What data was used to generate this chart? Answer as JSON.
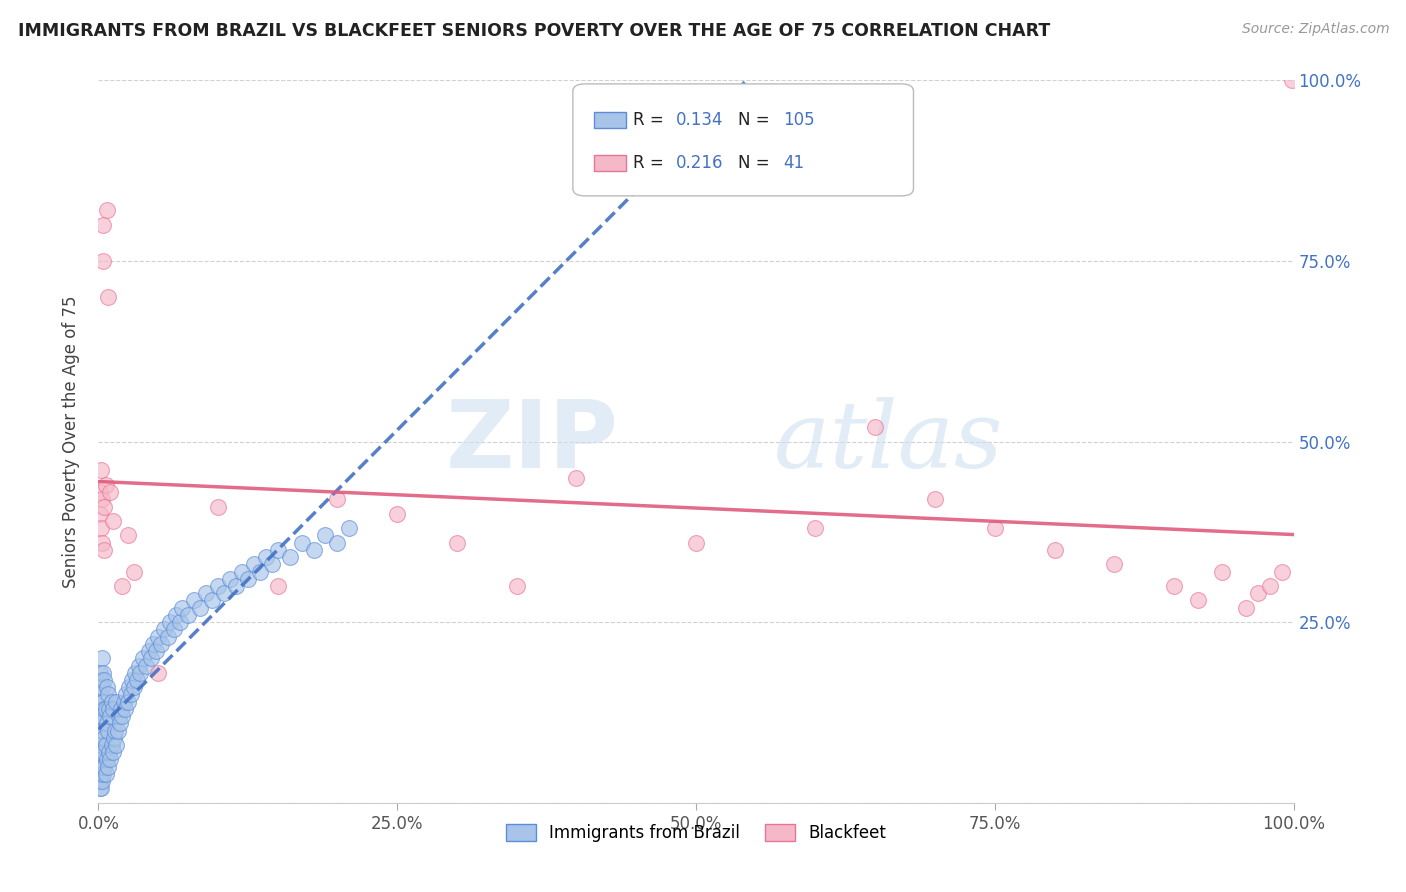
{
  "title": "IMMIGRANTS FROM BRAZIL VS BLACKFEET SENIORS POVERTY OVER THE AGE OF 75 CORRELATION CHART",
  "source": "Source: ZipAtlas.com",
  "ylabel": "Seniors Poverty Over the Age of 75",
  "xlim": [
    0.0,
    1.0
  ],
  "ylim": [
    0.0,
    1.0
  ],
  "xtick_labels": [
    "0.0%",
    "25.0%",
    "50.0%",
    "75.0%",
    "100.0%"
  ],
  "xtick_vals": [
    0.0,
    0.25,
    0.5,
    0.75,
    1.0
  ],
  "ytick_labels": [
    "",
    "25.0%",
    "50.0%",
    "75.0%",
    "100.0%"
  ],
  "ytick_vals": [
    0.0,
    0.25,
    0.5,
    0.75,
    1.0
  ],
  "brazil_color": "#a8c4e8",
  "blackfeet_color": "#f5b8c8",
  "brazil_edge": "#5b8dd9",
  "blackfeet_edge": "#e87496",
  "brazil_R": 0.134,
  "brazil_N": 105,
  "blackfeet_R": 0.216,
  "blackfeet_N": 41,
  "brazil_line_color": "#4472c4",
  "blackfeet_line_color": "#e05c7e",
  "watermark_zip": "ZIP",
  "watermark_atlas": "atlas",
  "legend_label_brazil": "Immigrants from Brazil",
  "legend_label_blackfeet": "Blackfeet",
  "brazil_scatter_x": [
    0.001,
    0.001,
    0.001,
    0.001,
    0.001,
    0.001,
    0.001,
    0.001,
    0.002,
    0.002,
    0.002,
    0.002,
    0.002,
    0.002,
    0.002,
    0.003,
    0.003,
    0.003,
    0.003,
    0.003,
    0.003,
    0.004,
    0.004,
    0.004,
    0.004,
    0.004,
    0.005,
    0.005,
    0.005,
    0.005,
    0.006,
    0.006,
    0.006,
    0.007,
    0.007,
    0.007,
    0.008,
    0.008,
    0.008,
    0.009,
    0.009,
    0.01,
    0.01,
    0.011,
    0.011,
    0.012,
    0.012,
    0.013,
    0.014,
    0.015,
    0.015,
    0.016,
    0.017,
    0.018,
    0.019,
    0.02,
    0.021,
    0.022,
    0.023,
    0.025,
    0.026,
    0.027,
    0.028,
    0.03,
    0.031,
    0.032,
    0.034,
    0.035,
    0.037,
    0.04,
    0.042,
    0.044,
    0.046,
    0.048,
    0.05,
    0.052,
    0.055,
    0.058,
    0.06,
    0.063,
    0.065,
    0.068,
    0.07,
    0.075,
    0.08,
    0.085,
    0.09,
    0.095,
    0.1,
    0.105,
    0.11,
    0.115,
    0.12,
    0.125,
    0.13,
    0.135,
    0.14,
    0.145,
    0.15,
    0.16,
    0.17,
    0.18,
    0.19,
    0.2,
    0.21
  ],
  "brazil_scatter_y": [
    0.02,
    0.03,
    0.05,
    0.07,
    0.1,
    0.12,
    0.15,
    0.18,
    0.02,
    0.04,
    0.06,
    0.08,
    0.11,
    0.14,
    0.17,
    0.03,
    0.05,
    0.08,
    0.12,
    0.16,
    0.2,
    0.04,
    0.07,
    0.1,
    0.14,
    0.18,
    0.05,
    0.09,
    0.13,
    0.17,
    0.04,
    0.08,
    0.13,
    0.06,
    0.11,
    0.16,
    0.05,
    0.1,
    0.15,
    0.07,
    0.13,
    0.06,
    0.12,
    0.08,
    0.14,
    0.07,
    0.13,
    0.09,
    0.1,
    0.08,
    0.14,
    0.1,
    0.12,
    0.11,
    0.13,
    0.12,
    0.14,
    0.13,
    0.15,
    0.14,
    0.16,
    0.15,
    0.17,
    0.16,
    0.18,
    0.17,
    0.19,
    0.18,
    0.2,
    0.19,
    0.21,
    0.2,
    0.22,
    0.21,
    0.23,
    0.22,
    0.24,
    0.23,
    0.25,
    0.24,
    0.26,
    0.25,
    0.27,
    0.26,
    0.28,
    0.27,
    0.29,
    0.28,
    0.3,
    0.29,
    0.31,
    0.3,
    0.32,
    0.31,
    0.33,
    0.32,
    0.34,
    0.33,
    0.35,
    0.34,
    0.36,
    0.35,
    0.37,
    0.36,
    0.38
  ],
  "blackfeet_scatter_x": [
    0.001,
    0.001,
    0.002,
    0.002,
    0.003,
    0.003,
    0.004,
    0.004,
    0.005,
    0.005,
    0.006,
    0.007,
    0.008,
    0.01,
    0.012,
    0.02,
    0.025,
    0.03,
    0.05,
    0.1,
    0.15,
    0.2,
    0.25,
    0.3,
    0.35,
    0.4,
    0.5,
    0.6,
    0.65,
    0.7,
    0.75,
    0.8,
    0.85,
    0.9,
    0.92,
    0.94,
    0.96,
    0.97,
    0.98,
    0.99,
    0.999
  ],
  "blackfeet_scatter_y": [
    0.4,
    0.43,
    0.38,
    0.46,
    0.36,
    0.42,
    0.8,
    0.75,
    0.35,
    0.41,
    0.44,
    0.82,
    0.7,
    0.43,
    0.39,
    0.3,
    0.37,
    0.32,
    0.18,
    0.41,
    0.3,
    0.42,
    0.4,
    0.36,
    0.3,
    0.45,
    0.36,
    0.38,
    0.52,
    0.42,
    0.38,
    0.35,
    0.33,
    0.3,
    0.28,
    0.32,
    0.27,
    0.29,
    0.3,
    0.32,
    1.0
  ]
}
